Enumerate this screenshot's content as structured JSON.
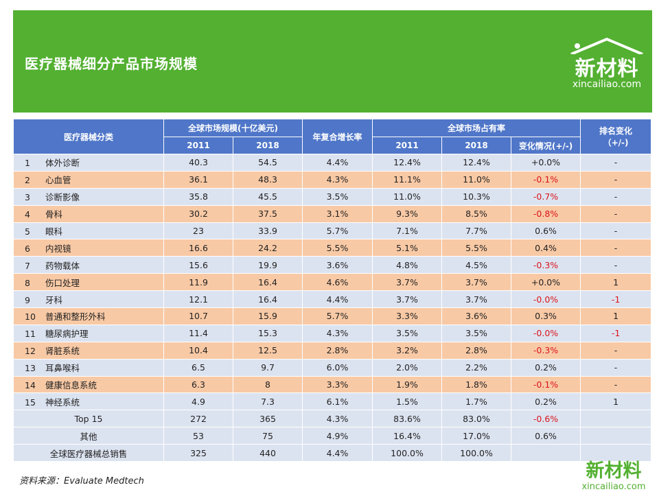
{
  "header": {
    "title": "医疗器械细分产品市场规模",
    "logo_cn": "新材料",
    "logo_en": "xincailiao.com"
  },
  "table": {
    "col_category": "医疗器械分类",
    "col_market_size": "全球市场规模(十亿美元)",
    "col_cagr": "年复合增长率",
    "col_share": "全球市场占有率",
    "col_rank": "排名变化",
    "col_rank_unit": "（+/-)",
    "year_2011": "2011",
    "year_2018": "2018",
    "col_share_change": "变化情况(+/-)",
    "rows": [
      {
        "idx": "1",
        "name": "体外诊断",
        "v2011": "40.3",
        "v2018": "54.5",
        "cagr": "4.4%",
        "s2011": "12.4%",
        "s2018": "12.4%",
        "chg": "+0.0%",
        "rank": "-"
      },
      {
        "idx": "2",
        "name": "心血管",
        "v2011": "36.1",
        "v2018": "48.3",
        "cagr": "4.3%",
        "s2011": "11.1%",
        "s2018": "11.0%",
        "chg": "-0.1%",
        "rank": "-"
      },
      {
        "idx": "3",
        "name": "诊断影像",
        "v2011": "35.8",
        "v2018": "45.5",
        "cagr": "3.5%",
        "s2011": "11.0%",
        "s2018": "10.3%",
        "chg": "-0.7%",
        "rank": "-"
      },
      {
        "idx": "4",
        "name": "骨科",
        "v2011": "30.2",
        "v2018": "37.5",
        "cagr": "3.1%",
        "s2011": "9.3%",
        "s2018": "8.5%",
        "chg": "-0.8%",
        "rank": "-"
      },
      {
        "idx": "5",
        "name": "眼科",
        "v2011": "23",
        "v2018": "33.9",
        "cagr": "5.7%",
        "s2011": "7.1%",
        "s2018": "7.7%",
        "chg": "0.6%",
        "rank": "-"
      },
      {
        "idx": "6",
        "name": "内视镜",
        "v2011": "16.6",
        "v2018": "24.2",
        "cagr": "5.5%",
        "s2011": "5.1%",
        "s2018": "5.5%",
        "chg": "0.4%",
        "rank": "-"
      },
      {
        "idx": "7",
        "name": "药物载体",
        "v2011": "15.6",
        "v2018": "19.9",
        "cagr": "3.6%",
        "s2011": "4.8%",
        "s2018": "4.5%",
        "chg": "-0.3%",
        "rank": "-"
      },
      {
        "idx": "8",
        "name": "伤口处理",
        "v2011": "11.9",
        "v2018": "16.4",
        "cagr": "4.6%",
        "s2011": "3.7%",
        "s2018": "3.7%",
        "chg": "+0.0%",
        "rank": "1"
      },
      {
        "idx": "9",
        "name": "牙科",
        "v2011": "12.1",
        "v2018": "16.4",
        "cagr": "4.4%",
        "s2011": "3.7%",
        "s2018": "3.7%",
        "chg": "-0.0%",
        "rank": "-1"
      },
      {
        "idx": "10",
        "name": "普通和整形外科",
        "v2011": "10.7",
        "v2018": "15.9",
        "cagr": "5.7%",
        "s2011": "3.3%",
        "s2018": "3.6%",
        "chg": "0.3%",
        "rank": "1"
      },
      {
        "idx": "11",
        "name": "糖尿病护理",
        "v2011": "11.4",
        "v2018": "15.3",
        "cagr": "4.3%",
        "s2011": "3.5%",
        "s2018": "3.5%",
        "chg": "-0.0%",
        "rank": "-1"
      },
      {
        "idx": "12",
        "name": "肾脏系统",
        "v2011": "10.4",
        "v2018": "12.5",
        "cagr": "2.8%",
        "s2011": "3.2%",
        "s2018": "2.8%",
        "chg": "-0.3%",
        "rank": "-"
      },
      {
        "idx": "13",
        "name": "耳鼻喉科",
        "v2011": "6.5",
        "v2018": "9.7",
        "cagr": "6.0%",
        "s2011": "2.0%",
        "s2018": "2.2%",
        "chg": "0.2%",
        "rank": "-"
      },
      {
        "idx": "14",
        "name": "健康信息系统",
        "v2011": "6.3",
        "v2018": "8",
        "cagr": "3.3%",
        "s2011": "1.9%",
        "s2018": "1.8%",
        "chg": "-0.1%",
        "rank": "-"
      },
      {
        "idx": "15",
        "name": "神经系统",
        "v2011": "4.9",
        "v2018": "7.3",
        "cagr": "6.1%",
        "s2011": "1.5%",
        "s2018": "1.7%",
        "chg": "0.2%",
        "rank": "1"
      }
    ],
    "summary": [
      {
        "label": "Top 15",
        "v2011": "272",
        "v2018": "365",
        "cagr": "4.3%",
        "s2011": "83.6%",
        "s2018": "83.0%",
        "chg": "-0.6%",
        "rank": ""
      },
      {
        "label": "其他",
        "v2011": "53",
        "v2018": "75",
        "cagr": "4.9%",
        "s2011": "16.4%",
        "s2018": "17.0%",
        "chg": "0.6%",
        "rank": ""
      },
      {
        "label": "全球医疗器械总销售",
        "v2011": "325",
        "v2018": "440",
        "cagr": "4.4%",
        "s2011": "100.0%",
        "s2018": "100.0%",
        "chg": "",
        "rank": ""
      }
    ]
  },
  "footer": {
    "source": "资料来源：Evaluate  Medtech",
    "logo_cn": "新材料",
    "logo_en": "xincailiao.com"
  },
  "colors": {
    "header_green": "#53b031",
    "table_header_blue": "#4f76c8",
    "row_blue": "#dce3f0",
    "row_orange": "#f8c9a5",
    "negative_red": "#d9141b"
  }
}
